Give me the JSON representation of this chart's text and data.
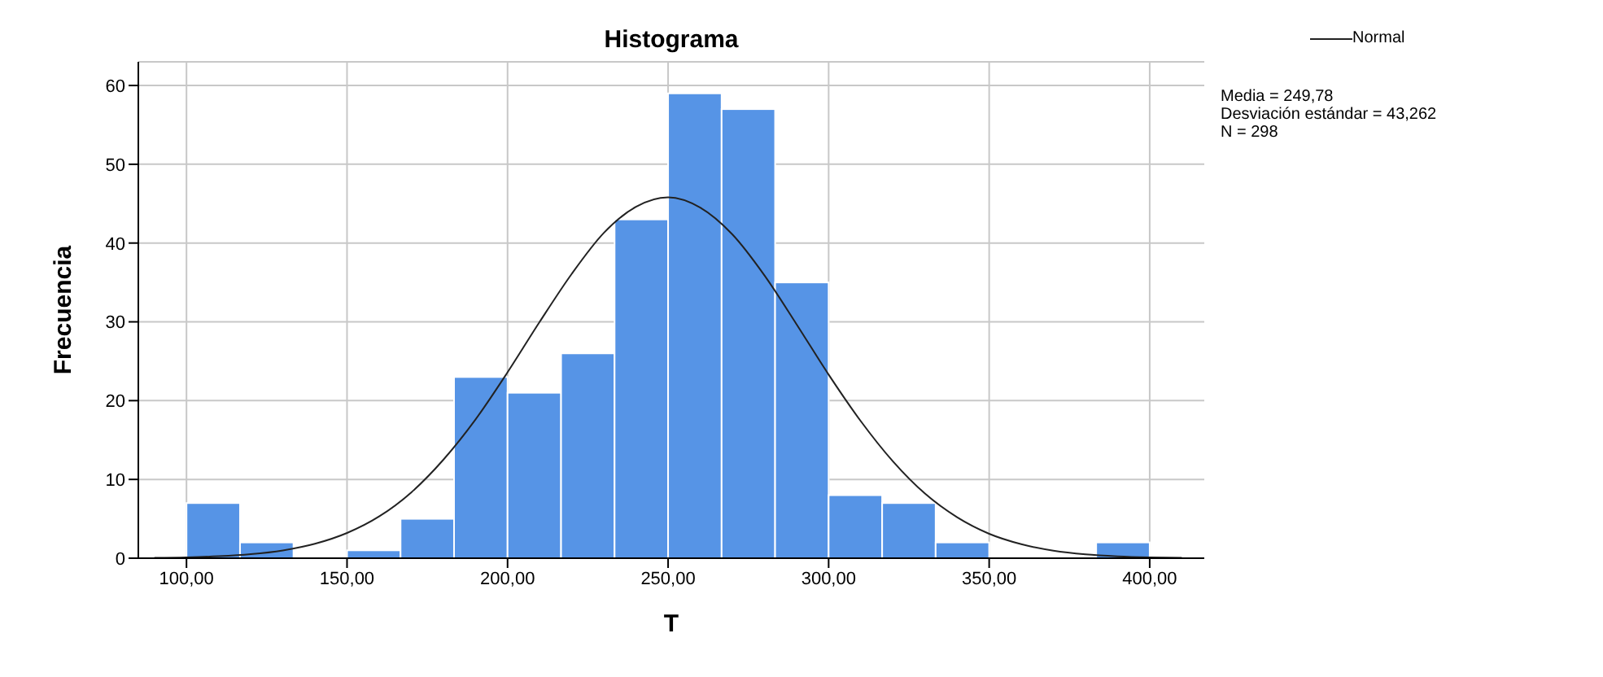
{
  "chart_data": {
    "type": "histogram",
    "title": "Histograma",
    "xlabel": "T",
    "ylabel": "Frecuencia",
    "bins": [
      100,
      116.67,
      133.33,
      150,
      166.67,
      183.33,
      200,
      216.67,
      233.33,
      250,
      266.67,
      283.33,
      300,
      316.67,
      333.33,
      350,
      366.67,
      383.33,
      400
    ],
    "values": [
      7,
      2,
      0,
      1,
      5,
      23,
      21,
      26,
      43,
      59,
      57,
      35,
      8,
      7,
      2,
      0,
      0,
      2
    ],
    "color": "#5694e6",
    "series": [
      {
        "name": "Normal",
        "type": "line",
        "color": "#222222",
        "x": [
          90,
          100,
          110,
          120,
          130,
          140,
          150,
          160,
          170,
          180,
          190,
          200,
          210,
          220,
          230,
          240,
          250,
          260,
          270,
          280,
          290,
          300,
          310,
          320,
          330,
          340,
          350,
          360,
          370,
          380,
          390,
          400,
          410
        ],
        "values": [
          0.05,
          0.11,
          0.25,
          0.51,
          0.99,
          1.83,
          3.2,
          5.3,
          8.35,
          12.5,
          17.6,
          23.6,
          30.0,
          36.1,
          41.3,
          44.6,
          45.8,
          44.5,
          41.1,
          35.9,
          29.7,
          23.3,
          17.4,
          12.3,
          8.2,
          5.2,
          3.1,
          1.78,
          0.96,
          0.49,
          0.24,
          0.11,
          0.05
        ]
      }
    ],
    "xlim": [
      85,
      417
    ],
    "ylim": [
      0,
      63
    ],
    "xticks": [
      {
        "value": 100,
        "label": "100,00"
      },
      {
        "value": 150,
        "label": "150,00"
      },
      {
        "value": 200,
        "label": "200,00"
      },
      {
        "value": 250,
        "label": "250,00"
      },
      {
        "value": 300,
        "label": "300,00"
      },
      {
        "value": 350,
        "label": "350,00"
      },
      {
        "value": 400,
        "label": "400,00"
      }
    ],
    "yticks": [
      0,
      10,
      20,
      30,
      40,
      50,
      60
    ],
    "grid": true,
    "legend": "top right",
    "annotations": [
      "Media = 249,78",
      "Desviación estándar = 43,262",
      "N = 298"
    ]
  }
}
